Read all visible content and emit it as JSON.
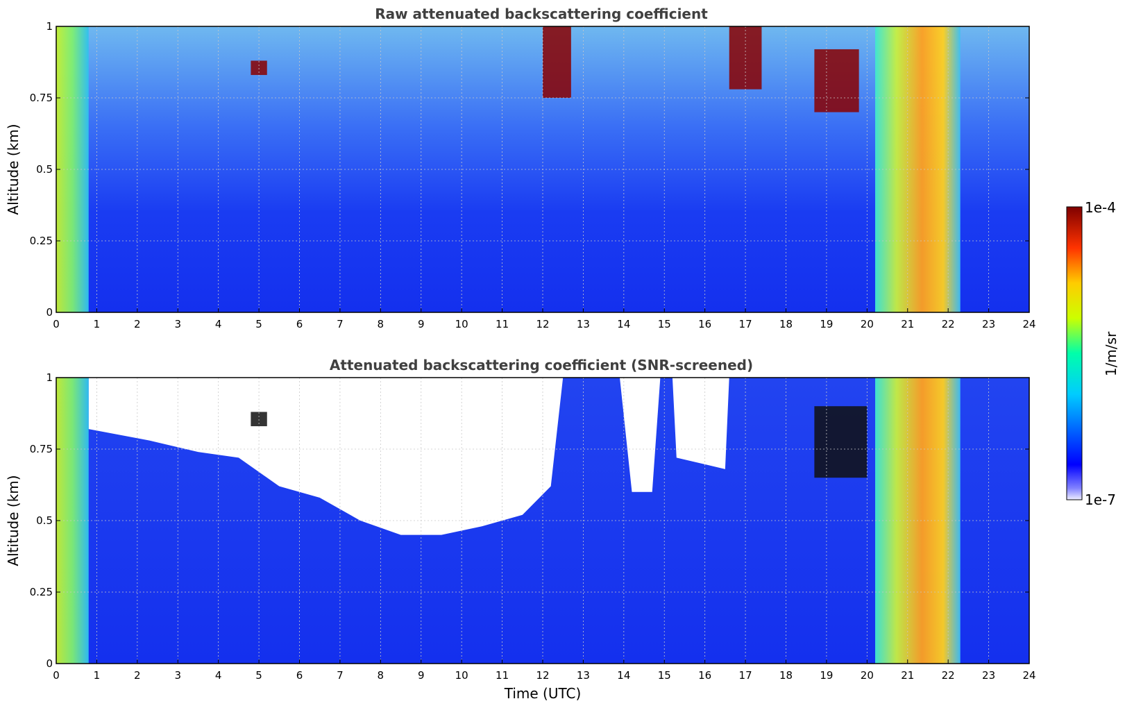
{
  "chart_data": [
    {
      "type": "heatmap",
      "title": "Raw attenuated backscattering coefficient",
      "xlabel": "",
      "ylabel": "Altitude (km)",
      "xlim": [
        0,
        24
      ],
      "ylim": [
        0,
        1
      ],
      "x_ticks": [
        "0",
        "1",
        "2",
        "3",
        "4",
        "5",
        "6",
        "7",
        "8",
        "9",
        "10",
        "11",
        "12",
        "13",
        "14",
        "15",
        "16",
        "17",
        "18",
        "19",
        "20",
        "21",
        "22",
        "23",
        "24"
      ],
      "y_ticks": [
        "0",
        "0.25",
        "0.5",
        "0.75",
        "1"
      ],
      "grid": true,
      "color_scale": "jet, logarithmic",
      "features": [
        {
          "x_range": [
            0,
            0.8
          ],
          "y_range": [
            0,
            1
          ],
          "level": "green-yellow"
        },
        {
          "x_range": [
            12,
            12.7
          ],
          "y_range": [
            0.75,
            1
          ],
          "level": "dark red"
        },
        {
          "x_range": [
            16.6,
            17.4
          ],
          "y_range": [
            0.78,
            1
          ],
          "level": "dark red"
        },
        {
          "x_range": [
            18.7,
            19.8
          ],
          "y_range": [
            0.7,
            0.92
          ],
          "level": "dark red"
        },
        {
          "x_range": [
            20.2,
            22.3
          ],
          "y_range": [
            0,
            1
          ],
          "level": "orange"
        },
        {
          "x_range": [
            4.8,
            5.2
          ],
          "y_range": [
            0.83,
            0.88
          ],
          "level": "dark red"
        }
      ]
    },
    {
      "type": "heatmap",
      "title": "Attenuated backscattering coefficient (SNR-screened)",
      "xlabel": "Time (UTC)",
      "ylabel": "Altitude (km)",
      "xlim": [
        0,
        24
      ],
      "ylim": [
        0,
        1
      ],
      "x_ticks": [
        "0",
        "1",
        "2",
        "3",
        "4",
        "5",
        "6",
        "7",
        "8",
        "9",
        "10",
        "11",
        "12",
        "13",
        "14",
        "15",
        "16",
        "17",
        "18",
        "19",
        "20",
        "21",
        "22",
        "23",
        "24"
      ],
      "y_ticks": [
        "0",
        "0.25",
        "0.5",
        "0.75",
        "1"
      ],
      "grid": true,
      "color_scale": "jet, logarithmic",
      "features": [
        {
          "x_range": [
            0,
            0.8
          ],
          "y_range": [
            0,
            1
          ],
          "level": "green-yellow"
        },
        {
          "x_range": [
            4.8,
            5.2
          ],
          "y_range": [
            0.83,
            0.88
          ],
          "level": "black (saturated)"
        },
        {
          "x_range": [
            18.7,
            20
          ],
          "y_range": [
            0.65,
            0.9
          ],
          "level": "black (saturated)"
        },
        {
          "x_range": [
            20.2,
            22.3
          ],
          "y_range": [
            0,
            1
          ],
          "level": "orange"
        }
      ]
    }
  ],
  "colorbar": {
    "label": "1/m/sr",
    "max_label": "1e-4",
    "min_label": "1e-7",
    "colormap": "jet"
  }
}
